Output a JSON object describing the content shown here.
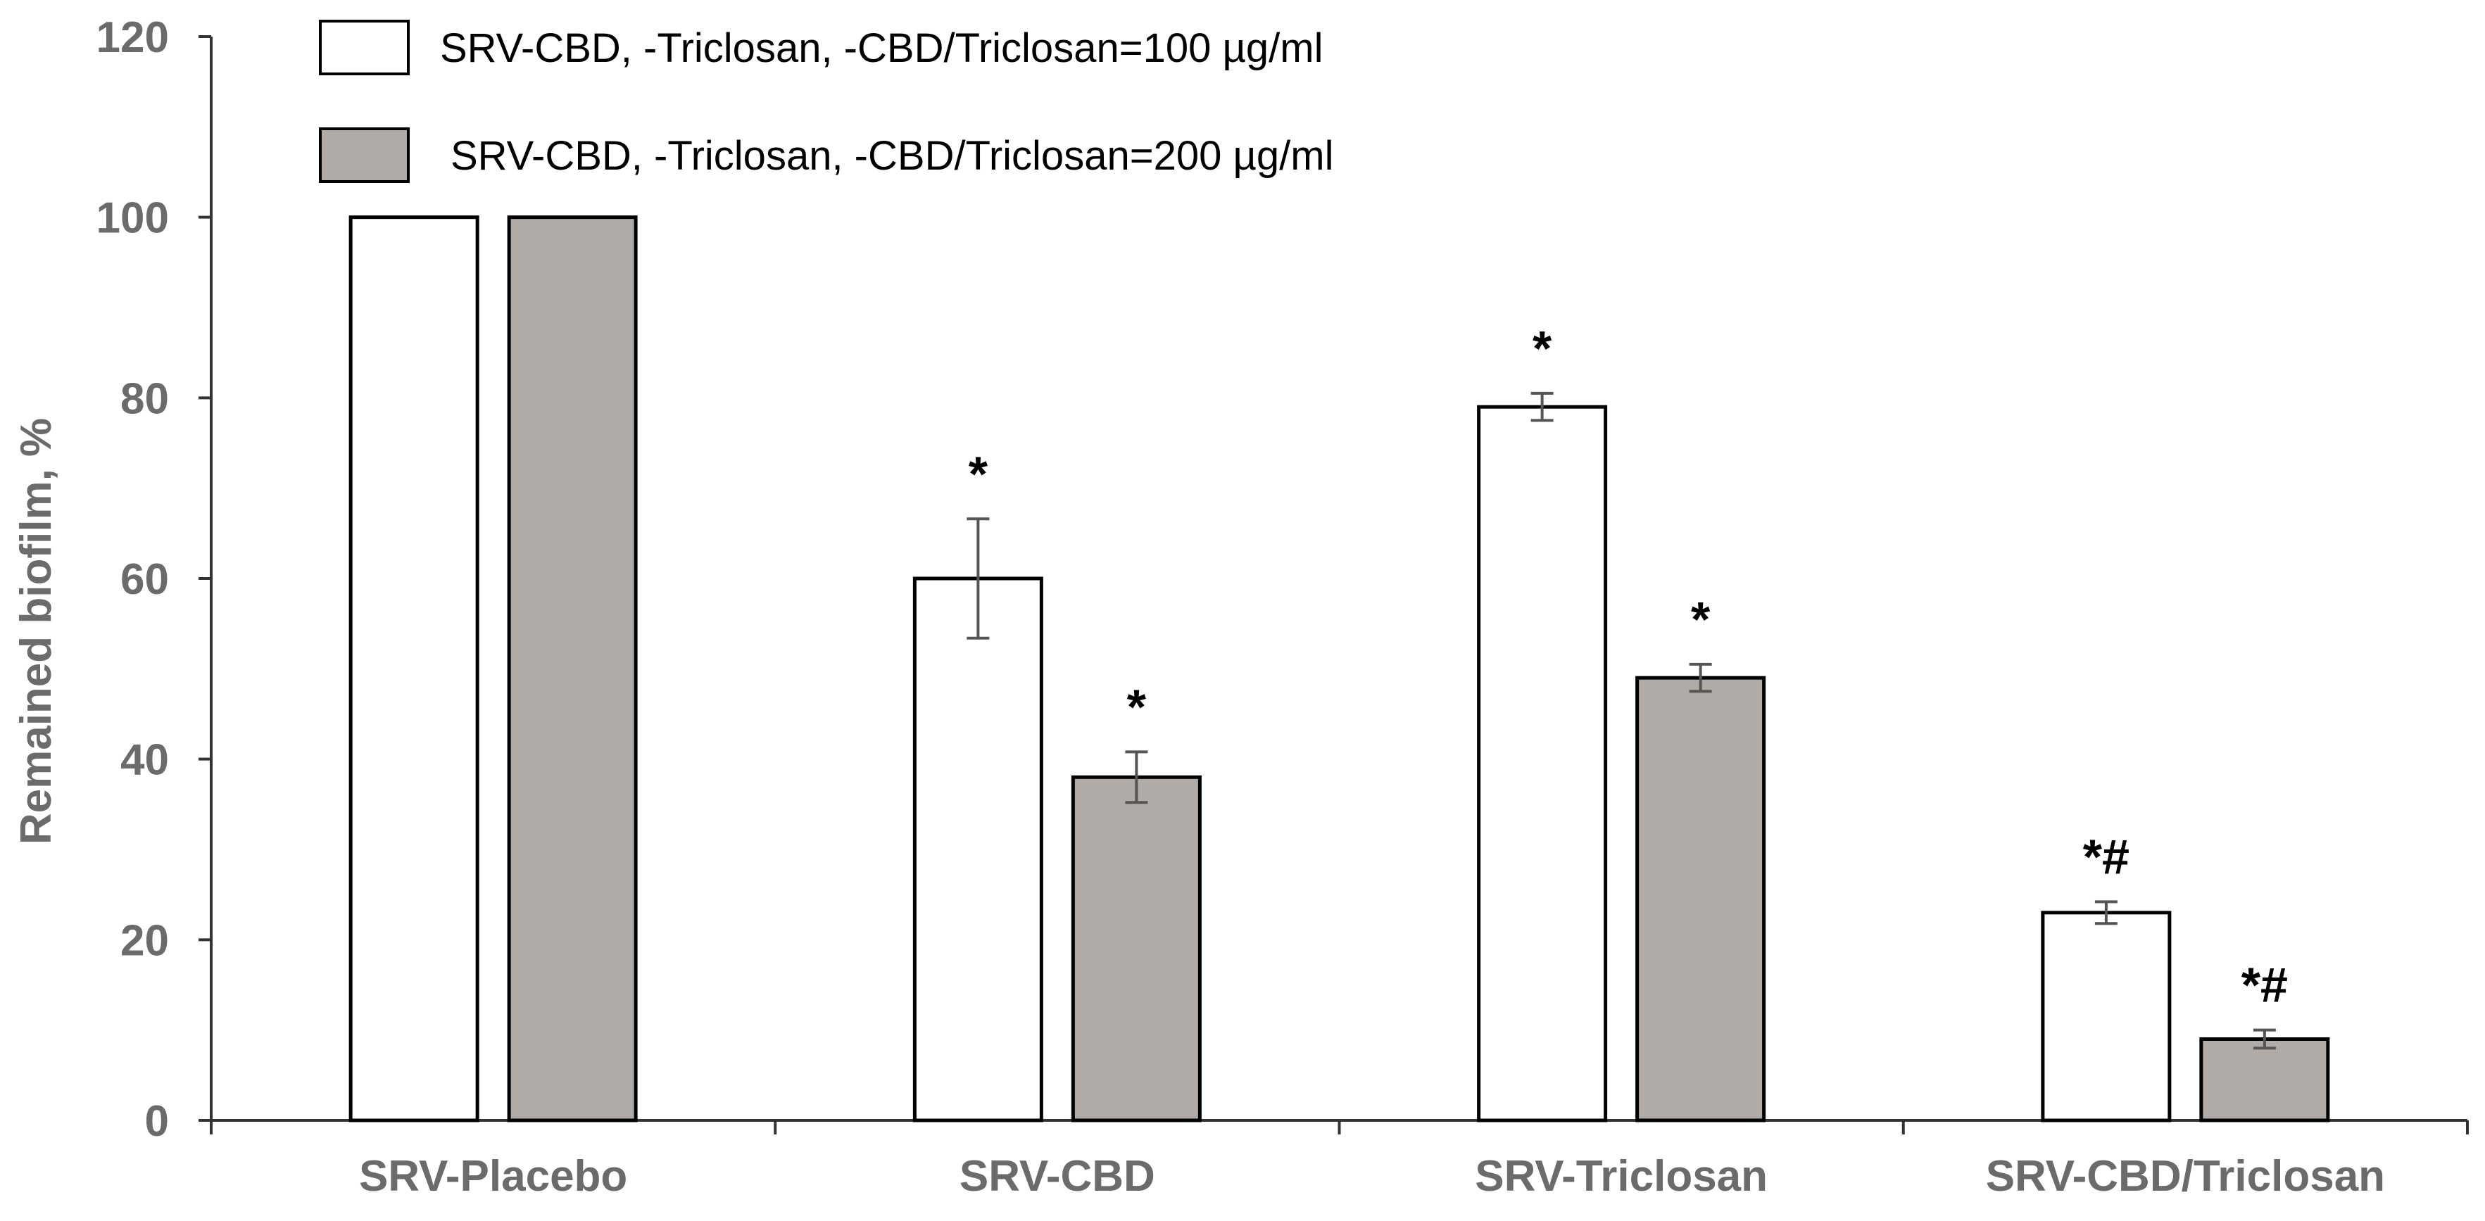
{
  "chart_data": {
    "type": "bar",
    "title": "",
    "xlabel": "",
    "ylabel": "Remained biofilm, %",
    "ylim": [
      0,
      120
    ],
    "yticks": [
      0,
      20,
      40,
      60,
      80,
      100,
      120
    ],
    "grid": false,
    "legend_position": "top-left",
    "categories": [
      "SRV-Placebo",
      "SRV-CBD",
      "SRV-Triclosan",
      "SRV-CBD/Triclosan"
    ],
    "series": [
      {
        "name": "SRV-CBD, -Triclosan, -CBD/Triclosan=100 µg/ml",
        "color": "#ffffff",
        "values": [
          100,
          60,
          79,
          23
        ],
        "errors": [
          0,
          6.6,
          1.5,
          1.2
        ],
        "annotations": [
          "",
          "*",
          "*",
          "*#"
        ]
      },
      {
        "name": "SRV-CBD, -Triclosan, -CBD/Triclosan=200 µg/ml",
        "color": "#b0aba6",
        "values": [
          100,
          38,
          49,
          9
        ],
        "errors": [
          0,
          2.8,
          1.5,
          1.0
        ],
        "annotations": [
          "",
          "*",
          "*",
          "*#"
        ]
      }
    ]
  }
}
